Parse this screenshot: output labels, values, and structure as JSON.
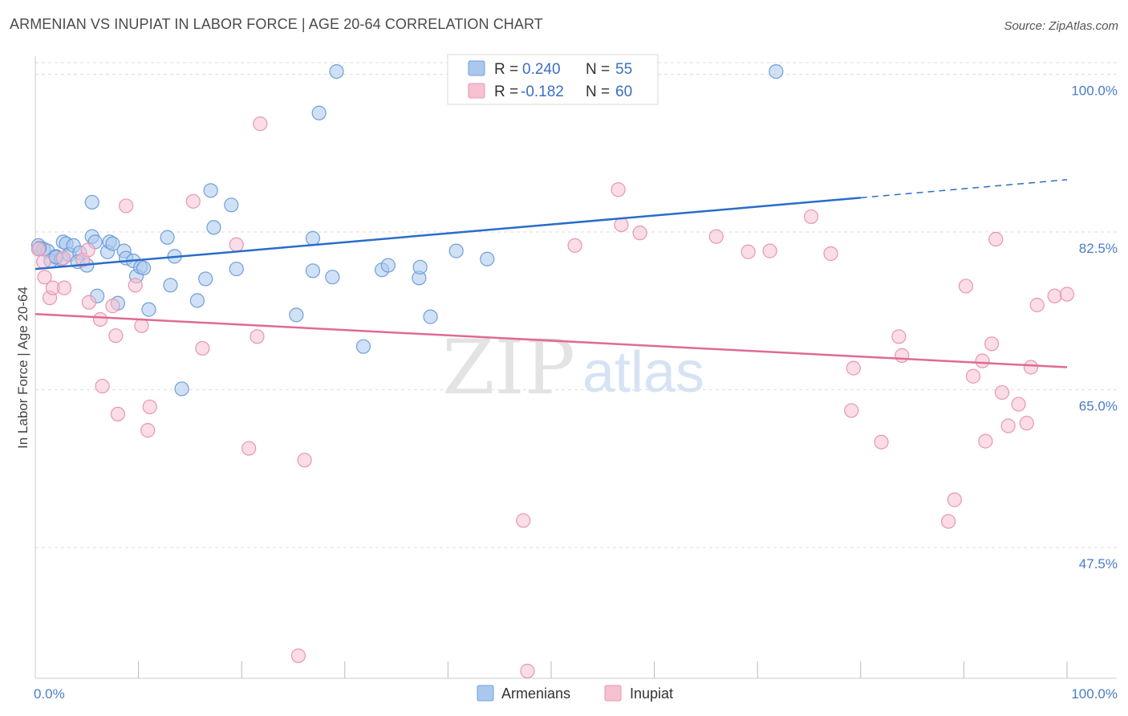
{
  "title": "ARMENIAN VS INUPIAT IN LABOR FORCE | AGE 20-64 CORRELATION CHART",
  "source": "Source: ZipAtlas.com",
  "watermark": {
    "zip": "ZIP",
    "atlas": "atlas"
  },
  "colors": {
    "armenians_fill": "#aac8ee",
    "armenians_stroke": "#6f9fd8",
    "armenians_line": "#2a6dc9",
    "inupiat_fill": "#f6c1d1",
    "inupiat_stroke": "#e896b0",
    "inupiat_line": "#e06a95",
    "tick_text": "#4a7cc7",
    "grid": "#dddddd"
  },
  "legend": {
    "rows": [
      {
        "r_label": "R =",
        "r_value": "0.240",
        "n_label": "N =",
        "n_value": "55"
      },
      {
        "r_label": "R =",
        "r_value": "-0.182",
        "n_label": "N =",
        "n_value": "60"
      }
    ]
  },
  "chart_data": {
    "type": "scatter",
    "xlabel": "",
    "ylabel": "In Labor Force | Age 20-64",
    "xlim": [
      0,
      100
    ],
    "ylim": [
      33,
      102
    ],
    "x_tick_labels": [
      "0.0%",
      "100.0%"
    ],
    "y_ticks": [
      47.5,
      65.0,
      82.5,
      100.0
    ],
    "y_tick_labels": [
      "47.5%",
      "65.0%",
      "82.5%",
      "100.0%"
    ],
    "grid": true,
    "legend_position": "top-center",
    "series": [
      {
        "name": "Armenians",
        "points": [
          [
            0.3,
            81.0
          ],
          [
            0.8,
            80.6
          ],
          [
            1.2,
            80.4
          ],
          [
            1.5,
            79.3
          ],
          [
            2.0,
            79.8
          ],
          [
            2.5,
            79.5
          ],
          [
            2.7,
            81.4
          ],
          [
            3.0,
            81.2
          ],
          [
            3.3,
            80.0
          ],
          [
            3.7,
            81.0
          ],
          [
            4.3,
            80.2
          ],
          [
            4.1,
            79.2
          ],
          [
            5.0,
            78.8
          ],
          [
            5.5,
            82.0
          ],
          [
            5.8,
            81.4
          ],
          [
            5.5,
            85.8
          ],
          [
            6.0,
            75.4
          ],
          [
            7.0,
            80.3
          ],
          [
            7.2,
            81.4
          ],
          [
            7.5,
            81.2
          ],
          [
            8.0,
            74.6
          ],
          [
            8.6,
            80.4
          ],
          [
            8.8,
            79.6
          ],
          [
            9.5,
            79.3
          ],
          [
            9.8,
            77.6
          ],
          [
            10.2,
            78.6
          ],
          [
            10.5,
            78.5
          ],
          [
            11.0,
            73.9
          ],
          [
            12.8,
            81.9
          ],
          [
            13.1,
            76.6
          ],
          [
            13.5,
            79.8
          ],
          [
            14.2,
            65.1
          ],
          [
            15.7,
            74.9
          ],
          [
            16.5,
            77.3
          ],
          [
            17.0,
            87.1
          ],
          [
            17.3,
            83.0
          ],
          [
            19.0,
            85.5
          ],
          [
            19.5,
            78.4
          ],
          [
            25.3,
            73.3
          ],
          [
            26.9,
            81.8
          ],
          [
            26.9,
            78.2
          ],
          [
            27.5,
            95.7
          ],
          [
            28.8,
            77.5
          ],
          [
            29.2,
            100.3
          ],
          [
            31.8,
            69.8
          ],
          [
            33.6,
            78.3
          ],
          [
            34.2,
            78.8
          ],
          [
            37.2,
            77.4
          ],
          [
            37.3,
            78.6
          ],
          [
            38.3,
            73.1
          ],
          [
            40.8,
            80.4
          ],
          [
            43.8,
            79.5
          ],
          [
            71.8,
            100.3
          ],
          [
            0.4,
            80.7
          ],
          [
            2.0,
            79.7
          ]
        ]
      },
      {
        "name": "Inupiat",
        "points": [
          [
            0.3,
            80.6
          ],
          [
            0.8,
            79.2
          ],
          [
            0.9,
            77.5
          ],
          [
            1.4,
            75.2
          ],
          [
            1.7,
            76.3
          ],
          [
            2.7,
            79.6
          ],
          [
            2.8,
            76.3
          ],
          [
            4.6,
            79.4
          ],
          [
            5.1,
            80.5
          ],
          [
            5.2,
            74.7
          ],
          [
            6.3,
            72.8
          ],
          [
            6.5,
            65.4
          ],
          [
            7.5,
            74.3
          ],
          [
            7.8,
            71.0
          ],
          [
            8.0,
            62.3
          ],
          [
            8.8,
            85.4
          ],
          [
            9.7,
            76.6
          ],
          [
            10.3,
            72.1
          ],
          [
            10.9,
            60.5
          ],
          [
            11.1,
            63.1
          ],
          [
            15.3,
            85.9
          ],
          [
            16.2,
            69.6
          ],
          [
            19.5,
            81.1
          ],
          [
            20.7,
            58.5
          ],
          [
            21.5,
            70.9
          ],
          [
            21.8,
            94.5
          ],
          [
            25.5,
            35.5
          ],
          [
            26.1,
            57.2
          ],
          [
            47.3,
            50.5
          ],
          [
            47.7,
            33.8
          ],
          [
            52.3,
            81.0
          ],
          [
            56.5,
            87.2
          ],
          [
            56.8,
            83.3
          ],
          [
            58.6,
            82.4
          ],
          [
            66.0,
            82.0
          ],
          [
            69.1,
            80.3
          ],
          [
            71.2,
            80.4
          ],
          [
            75.2,
            84.2
          ],
          [
            77.1,
            80.1
          ],
          [
            79.3,
            67.4
          ],
          [
            79.1,
            62.7
          ],
          [
            82.0,
            59.2
          ],
          [
            83.7,
            70.9
          ],
          [
            84.0,
            68.8
          ],
          [
            89.1,
            52.8
          ],
          [
            88.5,
            50.4
          ],
          [
            90.2,
            76.5
          ],
          [
            90.9,
            66.5
          ],
          [
            92.7,
            70.1
          ],
          [
            93.7,
            64.7
          ],
          [
            93.1,
            81.7
          ],
          [
            95.3,
            63.4
          ],
          [
            96.5,
            67.5
          ],
          [
            96.1,
            61.3
          ],
          [
            97.1,
            74.4
          ],
          [
            98.8,
            75.4
          ],
          [
            100.0,
            75.6
          ],
          [
            94.3,
            61.0
          ],
          [
            92.1,
            59.3
          ],
          [
            91.8,
            68.2
          ]
        ]
      }
    ],
    "trend_lines": [
      {
        "series": "Armenians",
        "x_start": 0,
        "y_start": 78.4,
        "x_solid_end": 80.0,
        "y_solid_end": 86.3,
        "x_dashed_end": 100.0,
        "y_dashed_end": 88.3
      },
      {
        "series": "Inupiat",
        "x_start": 0,
        "y_start": 73.4,
        "x_end": 100.0,
        "y_end": 67.5
      }
    ]
  }
}
